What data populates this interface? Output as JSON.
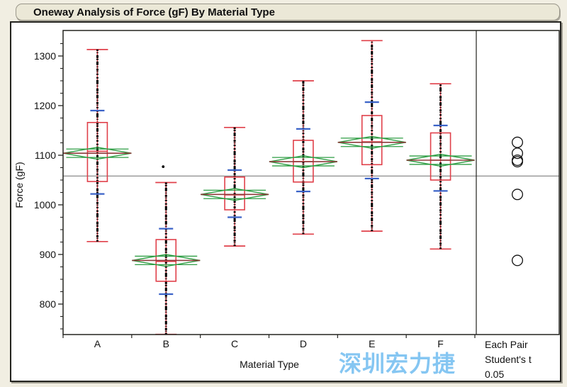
{
  "window": {
    "title": "Oneway Analysis of Force (gF) By Material Type"
  },
  "watermark": {
    "text": "深圳宏力捷",
    "color": "#7FC3F2"
  },
  "chart_data": {
    "type": "oneway-boxplot-with-means-diamonds",
    "title": "Oneway Analysis of Force (gF) By Material Type",
    "xlabel": "Material Type",
    "ylabel": "Force (gF)",
    "ylim": [
      737,
      1351
    ],
    "y_major_ticks": [
      1300,
      1200,
      1100,
      1000,
      900,
      800
    ],
    "y_minor_step": 25,
    "grid": false,
    "categories": [
      "A",
      "B",
      "C",
      "D",
      "E",
      "F"
    ],
    "grand_mean": 1058,
    "groups": [
      {
        "label": "A",
        "min": 926,
        "q1": 1047,
        "median": 1108,
        "q3": 1166,
        "max": 1313,
        "mean": 1104,
        "ci_half": 12,
        "sd_lower": 1022,
        "sd_upper": 1190,
        "outliers": []
      },
      {
        "label": "B",
        "min": 739,
        "q1": 846,
        "median": 886,
        "q3": 930,
        "max": 1045,
        "mean": 888,
        "ci_half": 12,
        "sd_lower": 820,
        "sd_upper": 952,
        "outliers": [
          1077
        ]
      },
      {
        "label": "C",
        "min": 917,
        "q1": 990,
        "median": 1020,
        "q3": 1056,
        "max": 1156,
        "mean": 1021,
        "ci_half": 12,
        "sd_lower": 975,
        "sd_upper": 1070,
        "outliers": []
      },
      {
        "label": "D",
        "min": 941,
        "q1": 1046,
        "median": 1087,
        "q3": 1130,
        "max": 1250,
        "mean": 1087,
        "ci_half": 12,
        "sd_lower": 1027,
        "sd_upper": 1153,
        "outliers": []
      },
      {
        "label": "E",
        "min": 947,
        "q1": 1081,
        "median": 1127,
        "q3": 1180,
        "max": 1331,
        "mean": 1126,
        "ci_half": 12,
        "sd_lower": 1053,
        "sd_upper": 1207,
        "outliers": []
      },
      {
        "label": "F",
        "min": 911,
        "q1": 1050,
        "median": 1090,
        "q3": 1145,
        "max": 1244,
        "mean": 1090,
        "ci_half": 12,
        "sd_lower": 1028,
        "sd_upper": 1160,
        "outliers": []
      }
    ],
    "comparison": {
      "labels": [
        "Each Pair",
        "Student's t",
        "0.05"
      ],
      "circle_values": [
        1126,
        1104,
        1090,
        1087,
        1021,
        888
      ],
      "circle_radius_gf": 10.5
    },
    "legend_position": "right",
    "colors": {
      "box": "#E0404A",
      "whisker": "#E0404A",
      "diamond": "#2E9E44",
      "mean_line": "#8E3B3B",
      "std_dev_tick": "#3B63C8",
      "data_points": "#000000",
      "grand_mean_line": "#8C8C8C",
      "frame": "#23231F",
      "circle": "#111111",
      "title_bar_bg": "#EBE8D7",
      "watermark": "#7FC3F2"
    }
  }
}
